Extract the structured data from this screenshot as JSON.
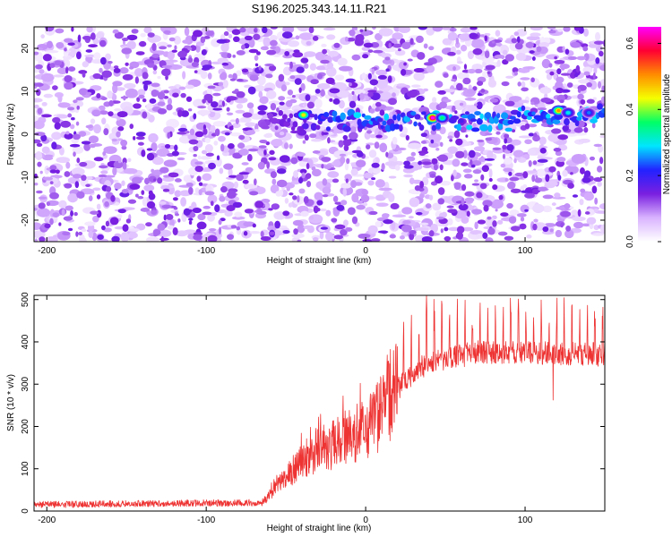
{
  "title": "S196.2025.343.14.11.R21",
  "chart_data": [
    {
      "type": "heatmap",
      "xlabel": "Height of straight line (km)",
      "ylabel": "Frequency (Hz)",
      "xlim": [
        -208,
        150
      ],
      "ylim": [
        -25,
        25
      ],
      "xticks": [
        -200,
        -100,
        0,
        100
      ],
      "yticks": [
        -20,
        -10,
        0,
        10,
        20
      ],
      "grid": false,
      "colorbar": {
        "label": "Normalized spectral amplitude",
        "range": [
          0.0,
          0.65
        ],
        "ticks": [
          "0.0",
          "0.2",
          "0.4",
          "0.6"
        ],
        "colormap": [
          "#ffffff",
          "#d9b3ff",
          "#7a1fe0",
          "#2222ff",
          "#00e5ff",
          "#00ff66",
          "#f5ff00",
          "#ff8c00",
          "#ff0033",
          "#ff00ff"
        ]
      },
      "signal_band_frequency_hz": 3,
      "signal_band_start_km": -65,
      "peaks": [
        {
          "x": -39,
          "y": 4.5,
          "amp": 0.45
        },
        {
          "x": 42,
          "y": 3.8,
          "amp": 0.65
        },
        {
          "x": 48,
          "y": 3.8,
          "amp": 0.35
        },
        {
          "x": 121,
          "y": 5.5,
          "amp": 0.5
        },
        {
          "x": 127,
          "y": 5.0,
          "amp": 0.3
        },
        {
          "x": 140,
          "y": 5.0,
          "amp": 0.25
        }
      ]
    },
    {
      "type": "line",
      "xlabel": "Height of straight line (km)",
      "ylabel": "SNR (10 * v/v)",
      "xlim": [
        -208,
        150
      ],
      "ylim": [
        0,
        510
      ],
      "xticks": [
        -200,
        -100,
        0,
        100
      ],
      "yticks": [
        0,
        100,
        200,
        300,
        400,
        500
      ],
      "grid": false,
      "series_color": "#ee3333",
      "envelope": {
        "x": [
          -208,
          -65,
          -55,
          -40,
          -25,
          -10,
          0,
          10,
          20,
          35,
          50,
          70,
          100,
          150
        ],
        "y": [
          15,
          20,
          60,
          120,
          150,
          180,
          195,
          230,
          290,
          340,
          360,
          375,
          375,
          370
        ]
      },
      "spikes": {
        "x_start": -5,
        "x_end": 150,
        "spacing_km": 4.8,
        "height_range": [
          420,
          510
        ]
      }
    }
  ]
}
